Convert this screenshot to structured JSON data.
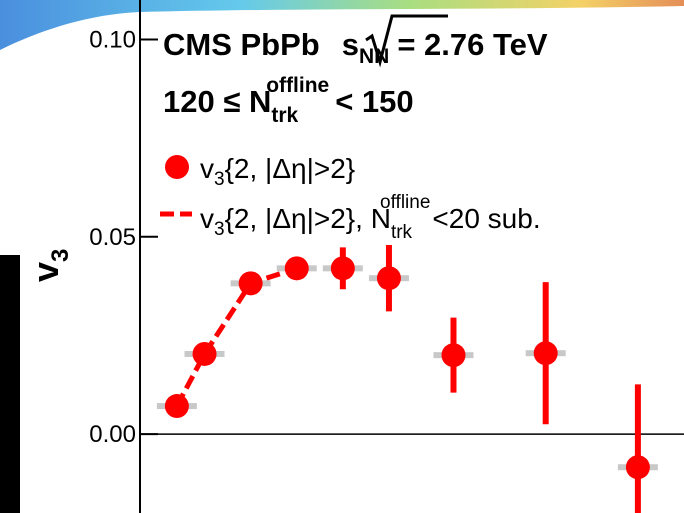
{
  "chart_data": {
    "type": "scatter",
    "annotations": [
      [
        "CMS PbPb",
        "s",
        "NN",
        "= 2.76 TeV"
      ],
      [
        "120 ≤ N",
        "trk",
        "offline",
        "< 150"
      ]
    ],
    "y_label": [
      "v",
      "3"
    ],
    "x": [
      0.4,
      0.7,
      1.2,
      1.7,
      2.2,
      2.7,
      3.4,
      4.4,
      5.4
    ],
    "series": [
      {
        "name": [
          "v",
          "3",
          "{2, |Δη|>2}"
        ],
        "color": "#ff0000",
        "marker": "circle",
        "values": [
          0.0071,
          0.0203,
          0.0382,
          0.042,
          0.042,
          0.0395,
          0.02,
          0.0205,
          -0.0084
        ],
        "errors": [
          0.001,
          0.001,
          0.001,
          0.001,
          0.0053,
          0.0084,
          0.0095,
          0.018,
          0.021
        ]
      },
      {
        "name": [
          "v",
          "3",
          "{2, |Δη|>2}, N",
          "trk",
          "offline",
          "<20 sub."
        ],
        "color": "#ff0000",
        "marker": "dashed-line",
        "values": [
          0.0071,
          0.0203,
          0.0382,
          0.042,
          null,
          null,
          null,
          null,
          null
        ]
      }
    ],
    "xlim": [
      0,
      5.9
    ],
    "ylim": [
      -0.02,
      0.11
    ],
    "yticks": [
      {
        "value": 0.0,
        "label": "0.00"
      },
      {
        "value": 0.05,
        "label": "0.05"
      },
      {
        "value": 0.1,
        "label": "0.10"
      }
    ],
    "zero_line": true,
    "grid": false
  }
}
